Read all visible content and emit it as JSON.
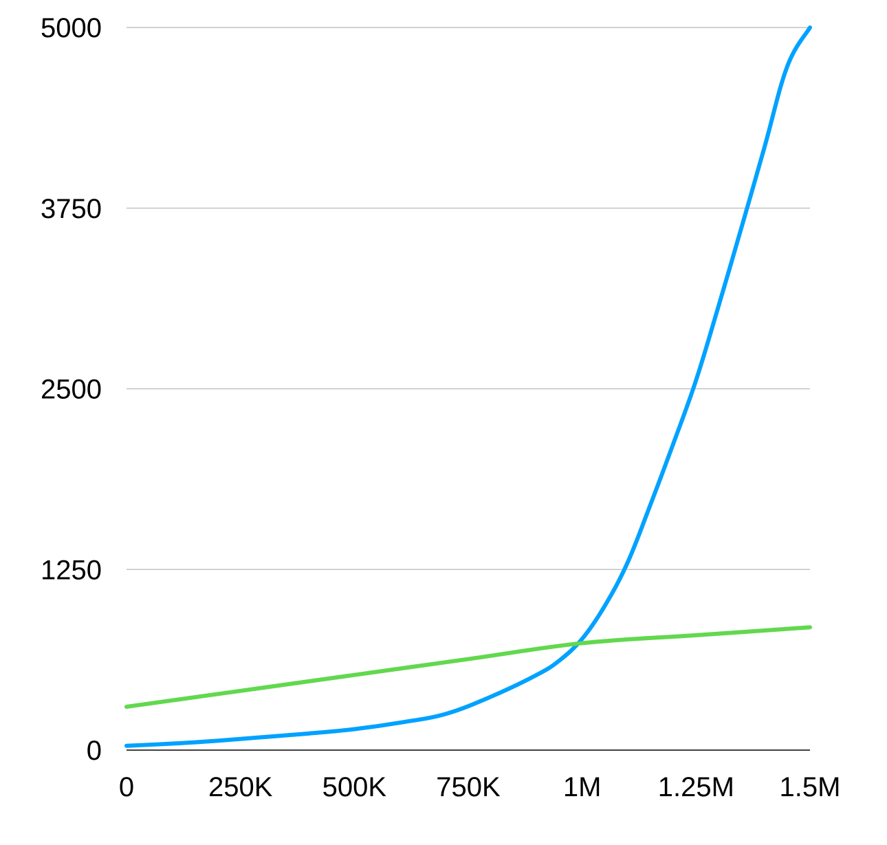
{
  "chart_data": {
    "type": "line",
    "title": "",
    "xlabel": "",
    "ylabel": "",
    "xlim": [
      0,
      1500000
    ],
    "ylim": [
      0,
      5000
    ],
    "x_ticks": [
      {
        "value": 0,
        "label": "0"
      },
      {
        "value": 250000,
        "label": "250K"
      },
      {
        "value": 500000,
        "label": "500K"
      },
      {
        "value": 750000,
        "label": "750K"
      },
      {
        "value": 1000000,
        "label": "1M"
      },
      {
        "value": 1250000,
        "label": "1.25M"
      },
      {
        "value": 1500000,
        "label": "1.5M"
      }
    ],
    "y_ticks": [
      {
        "value": 0,
        "label": "0"
      },
      {
        "value": 1250,
        "label": "1250"
      },
      {
        "value": 2500,
        "label": "2500"
      },
      {
        "value": 3750,
        "label": "3750"
      },
      {
        "value": 5000,
        "label": "5000"
      }
    ],
    "grid": true,
    "legend": "none",
    "series": [
      {
        "color": "#00a2ff",
        "points": [
          [
            0,
            30
          ],
          [
            100000,
            45
          ],
          [
            200000,
            65
          ],
          [
            300000,
            90
          ],
          [
            400000,
            115
          ],
          [
            500000,
            145
          ],
          [
            600000,
            190
          ],
          [
            700000,
            250
          ],
          [
            800000,
            370
          ],
          [
            900000,
            520
          ],
          [
            950000,
            620
          ],
          [
            1000000,
            770
          ],
          [
            1050000,
            1000
          ],
          [
            1100000,
            1300
          ],
          [
            1150000,
            1700
          ],
          [
            1200000,
            2120
          ],
          [
            1250000,
            2560
          ],
          [
            1300000,
            3080
          ],
          [
            1350000,
            3620
          ],
          [
            1400000,
            4170
          ],
          [
            1450000,
            4730
          ],
          [
            1500000,
            5000
          ]
        ]
      },
      {
        "color": "#62d84e",
        "points": [
          [
            0,
            300
          ],
          [
            250000,
            410
          ],
          [
            500000,
            520
          ],
          [
            750000,
            630
          ],
          [
            1000000,
            740
          ],
          [
            1250000,
            795
          ],
          [
            1500000,
            850
          ]
        ]
      }
    ]
  },
  "colors": {
    "grid": "#b8b8b8",
    "axis": "#000000",
    "text": "#000000"
  }
}
